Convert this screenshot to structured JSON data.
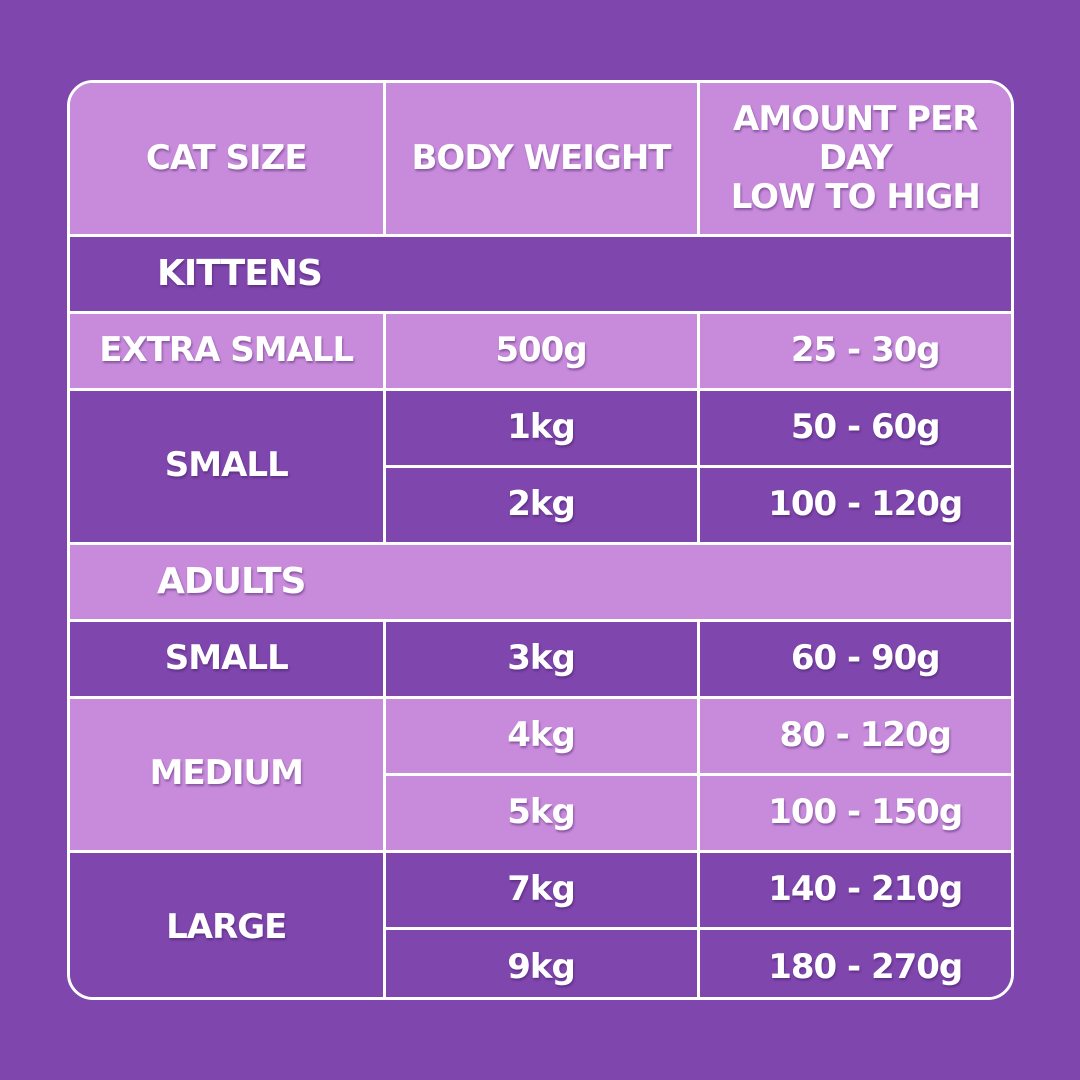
{
  "header": {
    "cat_size": "CAT SIZE",
    "body_weight": "BODY WEIGHT",
    "amount_line1": "AMOUNT PER DAY",
    "amount_line2": "LOW TO HIGH"
  },
  "colors": {
    "background": "#7f47ad",
    "light_row": "#c88bdb",
    "border": "#ffffff"
  },
  "kittens": {
    "label": "KITTENS",
    "extra_small": {
      "size": "EXTRA SMALL",
      "weight": "500g",
      "amount": "25 - 30g"
    },
    "small": {
      "size": "SMALL",
      "rows": [
        {
          "weight": "1kg",
          "amount": "50 - 60g"
        },
        {
          "weight": "2kg",
          "amount": "100 - 120g"
        }
      ]
    }
  },
  "adults": {
    "label": "ADULTS",
    "small": {
      "size": "SMALL",
      "weight": "3kg",
      "amount": "60 - 90g"
    },
    "medium": {
      "size": "MEDIUM",
      "rows": [
        {
          "weight": "4kg",
          "amount": "80 - 120g"
        },
        {
          "weight": "5kg",
          "amount": "100 - 150g"
        }
      ]
    },
    "large": {
      "size": "LARGE",
      "rows": [
        {
          "weight": "7kg",
          "amount": "140 - 210g"
        },
        {
          "weight": "9kg",
          "amount": "180 - 270g"
        }
      ]
    }
  }
}
